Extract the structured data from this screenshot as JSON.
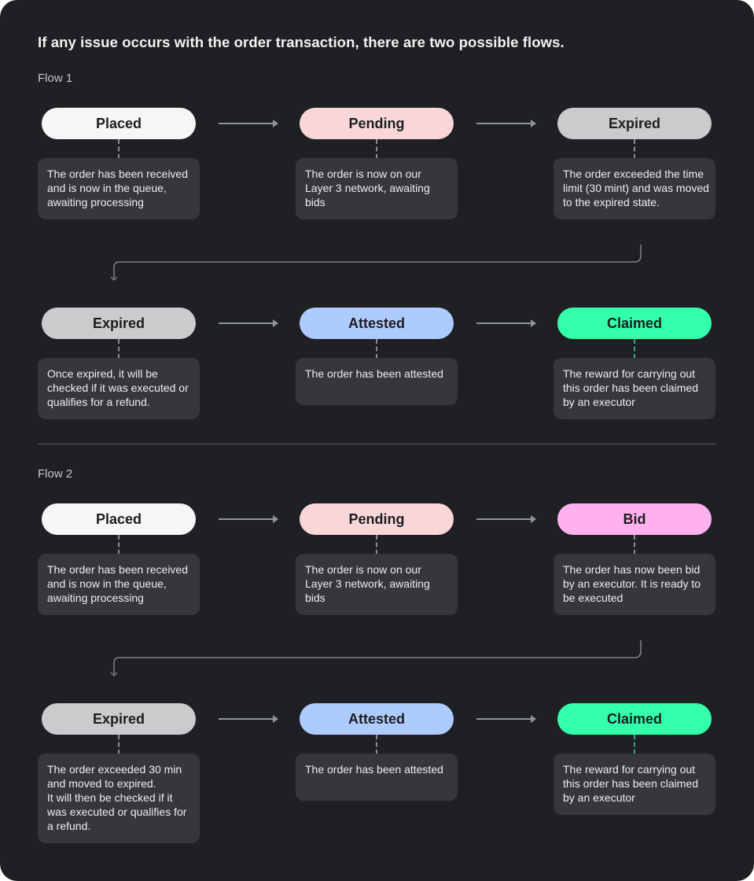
{
  "title": "If any issue occurs with the order transaction, there are two possible flows.",
  "colors": {
    "background": "#1f2024",
    "placed": "#f6f6f7",
    "pending": "#f9d7d9",
    "expired": "#cacbcd",
    "attested": "#aecbff",
    "claimed": "#34ffaa",
    "bid": "#ffb1ee",
    "description_box": "#36373d"
  },
  "flows": [
    {
      "label": "Flow 1",
      "rows": [
        [
          {
            "state": "Placed",
            "color": "placed",
            "description": "The order has been received and is now in the queue, awaiting processing"
          },
          {
            "state": "Pending",
            "color": "pending",
            "description": "The order is now on our Layer 3 network, awaiting bids"
          },
          {
            "state": "Expired",
            "color": "expired",
            "description": "The order exceeded the time limit (30 mint) and was moved to the expired state."
          }
        ],
        [
          {
            "state": "Expired",
            "color": "expired",
            "description": "Once expired, it will be checked if it was executed or qualifies for a refund."
          },
          {
            "state": "Attested",
            "color": "attested",
            "description": "The order has been attested"
          },
          {
            "state": "Claimed",
            "color": "claimed",
            "description": "The reward for carrying out this order has been claimed by an executor"
          }
        ]
      ]
    },
    {
      "label": "Flow 2",
      "rows": [
        [
          {
            "state": "Placed",
            "color": "placed",
            "description": "The order has been received and is now in the queue, awaiting processing"
          },
          {
            "state": "Pending",
            "color": "pending",
            "description": "The order is now on our Layer 3 network, awaiting bids"
          },
          {
            "state": "Bid",
            "color": "bid",
            "description": "The order has now been bid by an executor. It is ready to be executed"
          }
        ],
        [
          {
            "state": "Expired",
            "color": "expired",
            "description": "The order exceeded 30 min and moved to expired.\nIt will then be checked if it was executed or qualifies for a refund."
          },
          {
            "state": "Attested",
            "color": "attested",
            "description": "The order has been attested"
          },
          {
            "state": "Claimed",
            "color": "claimed",
            "description": "The reward for carrying out this order has been claimed by an executor"
          }
        ]
      ]
    }
  ]
}
